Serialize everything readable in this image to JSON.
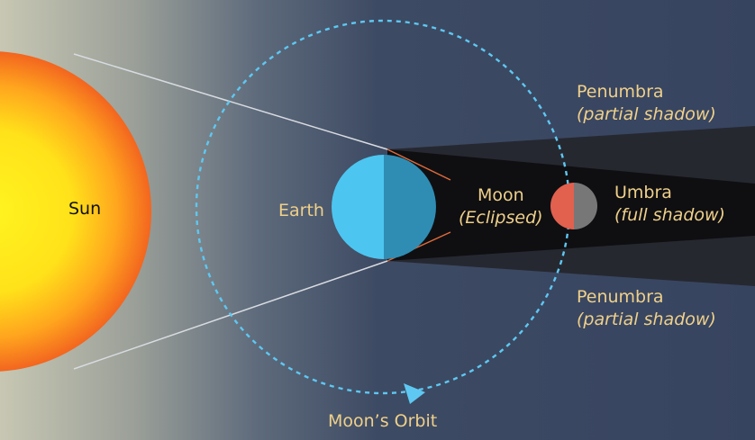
{
  "labels": {
    "sun": "Sun",
    "earth": "Earth",
    "moon": "Moon",
    "moon_state": "(Eclipsed)",
    "umbra": "Umbra",
    "umbra_desc": "(full shadow)",
    "penumbra_top": "Penumbra",
    "penumbra_top_desc": "(partial shadow)",
    "penumbra_bottom": "Penumbra",
    "penumbra_bottom_desc": "(partial shadow)",
    "orbit": "Moon’s Orbit"
  },
  "colors": {
    "background": "#3a4760",
    "sun_core": "#fff020",
    "sun_edge": "#f36a1f",
    "earth_light": "#4cc6f0",
    "earth_dark": "#2f8db4",
    "moon_lit": "#e1614e",
    "moon_dark": "#777777",
    "orbit": "#5ec8f2",
    "label_dark": "#111111",
    "label_light": "#efd08a",
    "shadow_umbra": "#0f0f12",
    "shadow_penumbra": "#25262d"
  }
}
